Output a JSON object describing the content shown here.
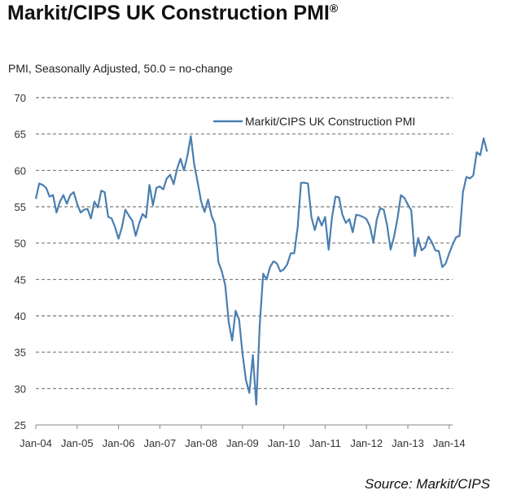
{
  "title": "Markit/CIPS UK Construction PMI",
  "title_mark": "®",
  "source": "Source: Markit/CIPS",
  "chart_data": {
    "type": "line",
    "title": "Markit/CIPS UK Construction PMI®",
    "subtitle": "PMI, Seasonally Adjusted, 50.0 = no-change",
    "xlabel": "",
    "ylabel": "",
    "ylim": [
      25,
      70
    ],
    "y_ticks": [
      25,
      30,
      35,
      40,
      45,
      50,
      55,
      60,
      65,
      70
    ],
    "x_ticks": [
      "Jan-04",
      "Jan-05",
      "Jan-06",
      "Jan-07",
      "Jan-08",
      "Jan-09",
      "Jan-10",
      "Jan-11",
      "Jan-12",
      "Jan-13",
      "Jan-14"
    ],
    "grid": "horizontal dashed",
    "legend_position": "top-right",
    "line_color": "#4a7eb0",
    "x_start": "Jan-04",
    "x_frequency": "monthly",
    "series": [
      {
        "name": "Markit/CIPS UK Construction PMI",
        "values": [
          56.1,
          58.2,
          58.0,
          57.6,
          56.4,
          56.6,
          54.2,
          55.7,
          56.6,
          55.4,
          56.6,
          57.0,
          55.4,
          54.2,
          54.6,
          54.7,
          53.4,
          55.7,
          54.9,
          57.2,
          57.0,
          53.6,
          53.4,
          52.2,
          50.6,
          52.2,
          54.6,
          53.8,
          53.1,
          51.0,
          52.7,
          54.0,
          53.5,
          58.0,
          55.2,
          57.6,
          57.8,
          57.4,
          58.9,
          59.4,
          58.1,
          60.2,
          61.6,
          60.0,
          62.0,
          64.7,
          60.8,
          58.3,
          55.7,
          54.3,
          56.0,
          53.8,
          52.6,
          47.4,
          46.1,
          44.2,
          39.1,
          36.6,
          40.7,
          39.5,
          34.8,
          31.2,
          29.4,
          34.6,
          27.8,
          38.6,
          45.8,
          45.0,
          46.7,
          47.5,
          47.2,
          46.1,
          46.4,
          47.1,
          48.6,
          48.6,
          52.1,
          58.3,
          58.3,
          58.2,
          53.6,
          51.8,
          53.6,
          52.4,
          53.6,
          49.1,
          53.6,
          56.4,
          56.3,
          53.9,
          52.8,
          53.3,
          51.5,
          53.9,
          53.8,
          53.6,
          53.3,
          52.3,
          50.1,
          53.3,
          54.8,
          54.6,
          52.4,
          49.1,
          50.9,
          53.4,
          56.6,
          56.2,
          55.3,
          54.5,
          48.2,
          50.7,
          49.0,
          49.4,
          50.9,
          50.1,
          49.0,
          48.9,
          46.7,
          47.2,
          48.6,
          49.8,
          50.8,
          51.0,
          57.0,
          59.1,
          58.9,
          59.3,
          62.5,
          62.1,
          64.4,
          62.6
        ]
      }
    ]
  }
}
